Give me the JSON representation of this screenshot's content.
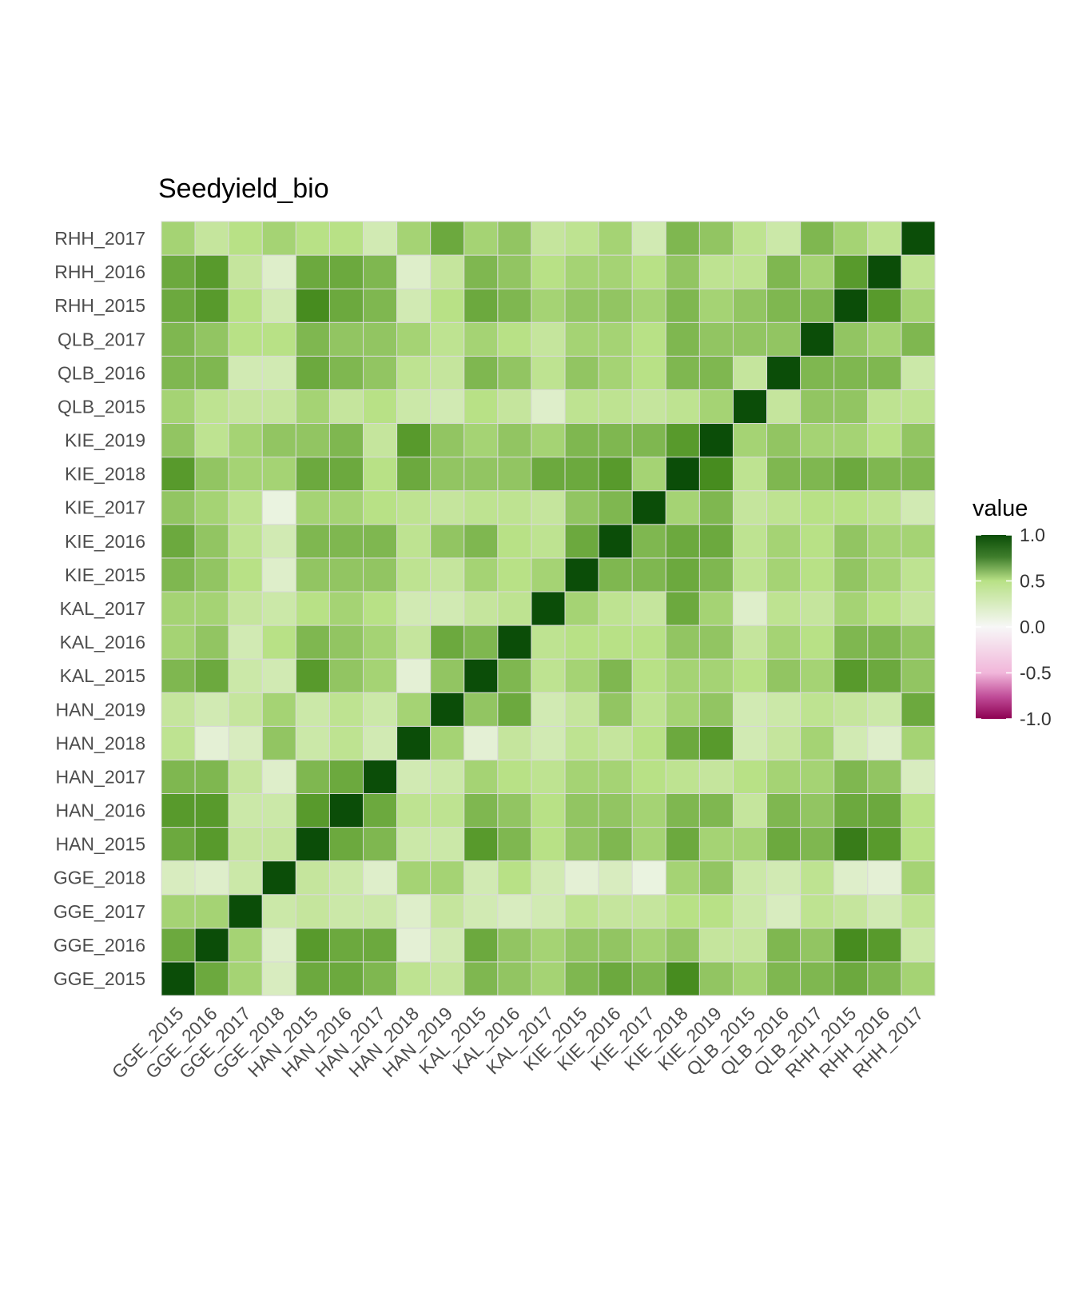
{
  "chart_data": {
    "type": "heatmap",
    "title": "Seedyield_bio",
    "xlabel": "",
    "ylabel": "",
    "labels": [
      "GGE_2015",
      "GGE_2016",
      "GGE_2017",
      "GGE_2018",
      "HAN_2015",
      "HAN_2016",
      "HAN_2017",
      "HAN_2018",
      "HAN_2019",
      "KAL_2015",
      "KAL_2016",
      "KAL_2017",
      "KIE_2015",
      "KIE_2016",
      "KIE_2017",
      "KIE_2018",
      "KIE_2019",
      "QLB_2015",
      "QLB_2016",
      "QLB_2017",
      "RHH_2015",
      "RHH_2016",
      "RHH_2017"
    ],
    "matrix_note": "rows and columns ordered as labels; row 0 is GGE_2015 (drawn at bottom)",
    "matrix": [
      [
        1.0,
        0.7,
        0.55,
        0.25,
        0.7,
        0.7,
        0.65,
        0.45,
        0.4,
        0.65,
        0.6,
        0.55,
        0.65,
        0.7,
        0.65,
        0.8,
        0.6,
        0.55,
        0.65,
        0.65,
        0.7,
        0.65,
        0.55
      ],
      [
        0.7,
        1.0,
        0.55,
        0.2,
        0.75,
        0.7,
        0.7,
        0.15,
        0.3,
        0.7,
        0.6,
        0.55,
        0.6,
        0.6,
        0.55,
        0.6,
        0.4,
        0.4,
        0.65,
        0.6,
        0.8,
        0.75,
        0.35
      ],
      [
        0.55,
        0.55,
        1.0,
        0.35,
        0.4,
        0.35,
        0.35,
        0.2,
        0.4,
        0.3,
        0.25,
        0.3,
        0.45,
        0.4,
        0.4,
        0.5,
        0.5,
        0.35,
        0.25,
        0.45,
        0.4,
        0.3,
        0.45
      ],
      [
        0.25,
        0.2,
        0.35,
        1.0,
        0.4,
        0.35,
        0.2,
        0.55,
        0.55,
        0.3,
        0.5,
        0.3,
        0.15,
        0.25,
        0.1,
        0.55,
        0.6,
        0.35,
        0.3,
        0.45,
        0.2,
        0.15,
        0.55
      ],
      [
        0.7,
        0.75,
        0.4,
        0.4,
        1.0,
        0.7,
        0.65,
        0.35,
        0.35,
        0.75,
        0.65,
        0.5,
        0.6,
        0.65,
        0.55,
        0.7,
        0.55,
        0.55,
        0.7,
        0.65,
        0.85,
        0.75,
        0.5
      ],
      [
        0.75,
        0.75,
        0.35,
        0.35,
        0.75,
        1.0,
        0.7,
        0.45,
        0.45,
        0.65,
        0.6,
        0.5,
        0.6,
        0.6,
        0.55,
        0.65,
        0.65,
        0.4,
        0.65,
        0.6,
        0.7,
        0.7,
        0.5
      ],
      [
        0.65,
        0.65,
        0.4,
        0.2,
        0.65,
        0.7,
        1.0,
        0.3,
        0.35,
        0.55,
        0.5,
        0.45,
        0.55,
        0.55,
        0.5,
        0.45,
        0.4,
        0.5,
        0.55,
        0.55,
        0.65,
        0.6,
        0.25
      ],
      [
        0.45,
        0.15,
        0.25,
        0.6,
        0.35,
        0.45,
        0.3,
        1.0,
        0.55,
        0.15,
        0.4,
        0.3,
        0.45,
        0.4,
        0.5,
        0.7,
        0.75,
        0.3,
        0.4,
        0.55,
        0.3,
        0.2,
        0.55
      ],
      [
        0.4,
        0.3,
        0.4,
        0.55,
        0.35,
        0.45,
        0.35,
        0.55,
        1.0,
        0.6,
        0.7,
        0.3,
        0.4,
        0.6,
        0.45,
        0.55,
        0.6,
        0.3,
        0.35,
        0.45,
        0.4,
        0.35,
        0.7
      ],
      [
        0.65,
        0.7,
        0.35,
        0.3,
        0.75,
        0.6,
        0.55,
        0.15,
        0.6,
        1.0,
        0.65,
        0.45,
        0.55,
        0.65,
        0.5,
        0.55,
        0.55,
        0.5,
        0.6,
        0.55,
        0.75,
        0.7,
        0.6
      ],
      [
        0.55,
        0.6,
        0.3,
        0.5,
        0.65,
        0.6,
        0.55,
        0.4,
        0.7,
        0.65,
        1.0,
        0.45,
        0.5,
        0.5,
        0.5,
        0.6,
        0.6,
        0.4,
        0.55,
        0.5,
        0.65,
        0.65,
        0.6
      ],
      [
        0.55,
        0.55,
        0.4,
        0.35,
        0.5,
        0.55,
        0.5,
        0.3,
        0.3,
        0.4,
        0.45,
        1.0,
        0.55,
        0.45,
        0.4,
        0.7,
        0.55,
        0.2,
        0.45,
        0.4,
        0.55,
        0.5,
        0.4
      ],
      [
        0.65,
        0.6,
        0.5,
        0.2,
        0.6,
        0.6,
        0.6,
        0.45,
        0.4,
        0.55,
        0.5,
        0.55,
        1.0,
        0.65,
        0.65,
        0.7,
        0.65,
        0.45,
        0.55,
        0.5,
        0.6,
        0.55,
        0.45
      ],
      [
        0.7,
        0.6,
        0.45,
        0.3,
        0.65,
        0.65,
        0.65,
        0.45,
        0.6,
        0.65,
        0.5,
        0.45,
        0.7,
        1.0,
        0.65,
        0.7,
        0.7,
        0.45,
        0.55,
        0.5,
        0.6,
        0.55,
        0.55
      ],
      [
        0.6,
        0.55,
        0.45,
        0.1,
        0.55,
        0.55,
        0.5,
        0.45,
        0.4,
        0.45,
        0.45,
        0.4,
        0.6,
        0.65,
        1.0,
        0.55,
        0.65,
        0.4,
        0.45,
        0.5,
        0.5,
        0.45,
        0.3
      ],
      [
        0.75,
        0.6,
        0.55,
        0.55,
        0.7,
        0.7,
        0.5,
        0.7,
        0.6,
        0.6,
        0.6,
        0.7,
        0.7,
        0.75,
        0.55,
        1.0,
        0.8,
        0.45,
        0.65,
        0.65,
        0.7,
        0.65,
        0.65
      ],
      [
        0.6,
        0.45,
        0.55,
        0.6,
        0.6,
        0.65,
        0.4,
        0.75,
        0.6,
        0.55,
        0.6,
        0.55,
        0.65,
        0.65,
        0.65,
        0.75,
        1.0,
        0.55,
        0.6,
        0.55,
        0.55,
        0.5,
        0.6
      ],
      [
        0.55,
        0.45,
        0.4,
        0.4,
        0.55,
        0.4,
        0.5,
        0.35,
        0.3,
        0.5,
        0.4,
        0.2,
        0.45,
        0.45,
        0.4,
        0.45,
        0.55,
        1.0,
        0.4,
        0.6,
        0.6,
        0.45,
        0.45
      ],
      [
        0.65,
        0.65,
        0.3,
        0.3,
        0.7,
        0.65,
        0.6,
        0.45,
        0.4,
        0.65,
        0.6,
        0.45,
        0.6,
        0.55,
        0.5,
        0.65,
        0.65,
        0.4,
        1.0,
        0.65,
        0.65,
        0.65,
        0.35
      ],
      [
        0.65,
        0.6,
        0.5,
        0.5,
        0.65,
        0.6,
        0.6,
        0.55,
        0.45,
        0.55,
        0.5,
        0.4,
        0.55,
        0.55,
        0.5,
        0.65,
        0.6,
        0.6,
        0.6,
        1.0,
        0.6,
        0.55,
        0.65
      ],
      [
        0.7,
        0.75,
        0.5,
        0.3,
        0.8,
        0.7,
        0.65,
        0.3,
        0.5,
        0.7,
        0.65,
        0.55,
        0.6,
        0.6,
        0.55,
        0.65,
        0.55,
        0.6,
        0.65,
        0.65,
        1.0,
        0.75,
        0.55
      ],
      [
        0.7,
        0.75,
        0.4,
        0.2,
        0.7,
        0.7,
        0.65,
        0.2,
        0.4,
        0.65,
        0.6,
        0.5,
        0.55,
        0.55,
        0.5,
        0.6,
        0.45,
        0.45,
        0.65,
        0.55,
        0.75,
        1.0,
        0.45
      ],
      [
        0.55,
        0.4,
        0.5,
        0.55,
        0.5,
        0.5,
        0.3,
        0.55,
        0.7,
        0.55,
        0.6,
        0.4,
        0.45,
        0.55,
        0.3,
        0.65,
        0.6,
        0.45,
        0.35,
        0.65,
        0.55,
        0.45,
        1.0
      ]
    ],
    "legend": {
      "title": "value",
      "ticks": [
        "1.0",
        "0.5",
        "0.0",
        "-0.5",
        "-1.0"
      ],
      "tick_values": [
        1.0,
        0.5,
        0.0,
        -0.5,
        -1.0
      ],
      "range": [
        -1.0,
        1.0
      ],
      "placement": "right"
    },
    "colors": {
      "low": "#8e0152",
      "mid_low": "#f1b6da",
      "mid": "#f7f7f7",
      "mid_high": "#b8e186",
      "high": "#0b4d08",
      "panel_background": "#ebebeb",
      "tile_border": "#d9d9d9"
    },
    "grid": false
  }
}
